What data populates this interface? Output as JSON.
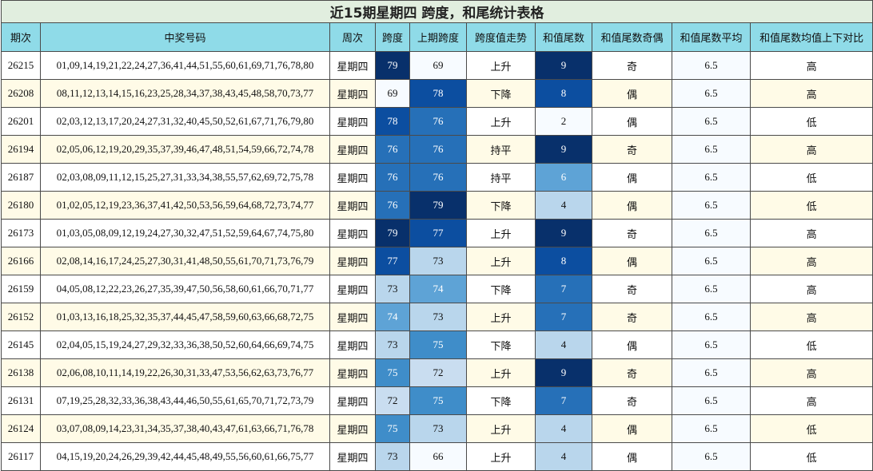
{
  "title": "近15期星期四 跨度，和尾统计表格",
  "headers": [
    "期次",
    "中奖号码",
    "周次",
    "跨度",
    "上期跨度",
    "跨度值走势",
    "和值尾数",
    "和值尾数奇偶",
    "和值尾数平均",
    "和值尾数均值上下对比"
  ],
  "rows": [
    {
      "issue": "26215",
      "numbers": "01,09,14,19,21,22,24,27,36,41,44,51,55,60,61,69,71,76,78,80",
      "weekday": "星期四",
      "span": "79",
      "prev_span": "69",
      "trend": "上升",
      "tail": "9",
      "parity": "奇",
      "avg": "6.5",
      "compare": "高"
    },
    {
      "issue": "26208",
      "numbers": "08,11,12,13,14,15,16,23,25,28,34,37,38,43,45,48,58,70,73,77",
      "weekday": "星期四",
      "span": "69",
      "prev_span": "78",
      "trend": "下降",
      "tail": "8",
      "parity": "偶",
      "avg": "6.5",
      "compare": "高"
    },
    {
      "issue": "26201",
      "numbers": "02,03,12,13,17,20,24,27,31,32,40,45,50,52,61,67,71,76,79,80",
      "weekday": "星期四",
      "span": "78",
      "prev_span": "76",
      "trend": "上升",
      "tail": "2",
      "parity": "偶",
      "avg": "6.5",
      "compare": "低"
    },
    {
      "issue": "26194",
      "numbers": "02,05,06,12,19,20,29,35,37,39,46,47,48,51,54,59,66,72,74,78",
      "weekday": "星期四",
      "span": "76",
      "prev_span": "76",
      "trend": "持平",
      "tail": "9",
      "parity": "奇",
      "avg": "6.5",
      "compare": "高"
    },
    {
      "issue": "26187",
      "numbers": "02,03,08,09,11,12,15,25,27,31,33,34,38,55,57,62,69,72,75,78",
      "weekday": "星期四",
      "span": "76",
      "prev_span": "76",
      "trend": "持平",
      "tail": "6",
      "parity": "偶",
      "avg": "6.5",
      "compare": "低"
    },
    {
      "issue": "26180",
      "numbers": "01,02,05,12,19,23,36,37,41,42,50,53,56,59,64,68,72,73,74,77",
      "weekday": "星期四",
      "span": "76",
      "prev_span": "79",
      "trend": "下降",
      "tail": "4",
      "parity": "偶",
      "avg": "6.5",
      "compare": "低"
    },
    {
      "issue": "26173",
      "numbers": "01,03,05,08,09,12,19,24,27,30,32,47,51,52,59,64,67,74,75,80",
      "weekday": "星期四",
      "span": "79",
      "prev_span": "77",
      "trend": "上升",
      "tail": "9",
      "parity": "奇",
      "avg": "6.5",
      "compare": "高"
    },
    {
      "issue": "26166",
      "numbers": "02,08,14,16,17,24,25,27,30,31,41,48,50,55,61,70,71,73,76,79",
      "weekday": "星期四",
      "span": "77",
      "prev_span": "73",
      "trend": "上升",
      "tail": "8",
      "parity": "偶",
      "avg": "6.5",
      "compare": "高"
    },
    {
      "issue": "26159",
      "numbers": "04,05,08,12,22,23,26,27,35,39,47,50,56,58,60,61,66,70,71,77",
      "weekday": "星期四",
      "span": "73",
      "prev_span": "74",
      "trend": "下降",
      "tail": "7",
      "parity": "奇",
      "avg": "6.5",
      "compare": "高"
    },
    {
      "issue": "26152",
      "numbers": "01,03,13,16,18,25,32,35,37,44,45,47,58,59,60,63,66,68,72,75",
      "weekday": "星期四",
      "span": "74",
      "prev_span": "73",
      "trend": "上升",
      "tail": "7",
      "parity": "奇",
      "avg": "6.5",
      "compare": "高"
    },
    {
      "issue": "26145",
      "numbers": "02,04,05,15,19,24,27,29,32,33,36,38,50,52,60,64,66,69,74,75",
      "weekday": "星期四",
      "span": "73",
      "prev_span": "75",
      "trend": "下降",
      "tail": "4",
      "parity": "偶",
      "avg": "6.5",
      "compare": "低"
    },
    {
      "issue": "26138",
      "numbers": "02,06,08,10,11,14,19,22,26,30,31,33,47,53,56,62,63,73,76,77",
      "weekday": "星期四",
      "span": "75",
      "prev_span": "72",
      "trend": "上升",
      "tail": "9",
      "parity": "奇",
      "avg": "6.5",
      "compare": "高"
    },
    {
      "issue": "26131",
      "numbers": "07,19,25,28,32,33,36,38,43,44,46,50,55,61,65,70,71,72,73,79",
      "weekday": "星期四",
      "span": "72",
      "prev_span": "75",
      "trend": "下降",
      "tail": "7",
      "parity": "奇",
      "avg": "6.5",
      "compare": "高"
    },
    {
      "issue": "26124",
      "numbers": "03,07,08,09,14,23,31,34,35,37,38,40,43,47,61,63,66,71,76,78",
      "weekday": "星期四",
      "span": "75",
      "prev_span": "73",
      "trend": "上升",
      "tail": "4",
      "parity": "偶",
      "avg": "6.5",
      "compare": "低"
    },
    {
      "issue": "26117",
      "numbers": "04,15,19,20,24,26,29,39,42,44,45,48,49,55,56,60,61,66,75,77",
      "weekday": "星期四",
      "span": "73",
      "prev_span": "66",
      "trend": "上升",
      "tail": "4",
      "parity": "偶",
      "avg": "6.5",
      "compare": "低"
    }
  ],
  "colors": {
    "title_bg": "#e1eedf",
    "header_bg": "#8fdbe8",
    "odd_row_bg": "#ffffff",
    "even_row_bg": "#fffbe7",
    "heat_dark": "#08306b",
    "heat_light": "#f7fbff"
  }
}
